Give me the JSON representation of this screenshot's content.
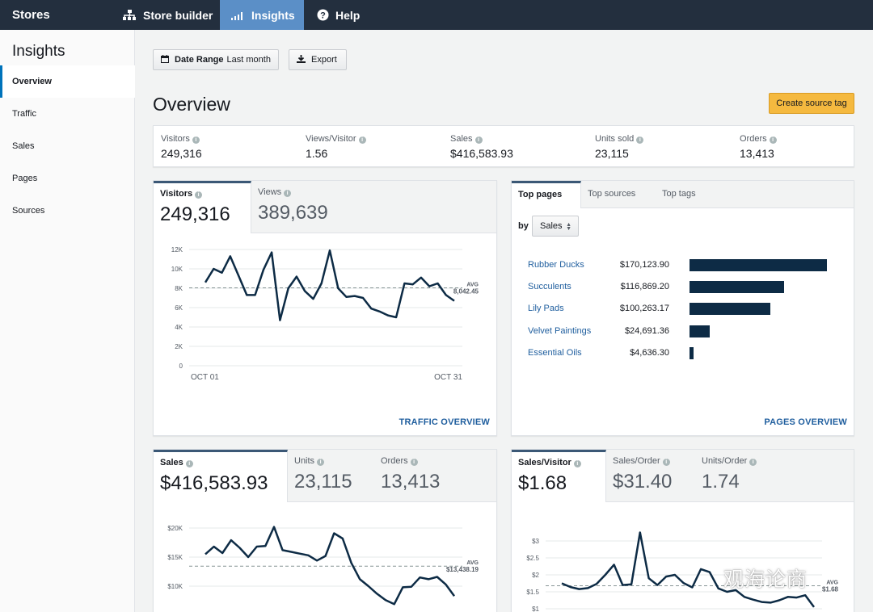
{
  "topbar": {
    "brand": "Stores",
    "nav": [
      {
        "label": "Store builder",
        "icon": "sitemap-icon"
      },
      {
        "label": "Insights",
        "icon": "bar-chart-icon",
        "active": true
      },
      {
        "label": "Help",
        "icon": "help-icon"
      }
    ]
  },
  "sidebar": {
    "title": "Insights",
    "items": [
      {
        "label": "Overview",
        "active": true
      },
      {
        "label": "Traffic"
      },
      {
        "label": "Sales"
      },
      {
        "label": "Pages"
      },
      {
        "label": "Sources"
      }
    ]
  },
  "toolbar": {
    "date_range_label": "Date Range",
    "date_range_value": "Last month",
    "export_label": "Export"
  },
  "page": {
    "title": "Overview",
    "create_button": "Create source tag"
  },
  "summary": [
    {
      "label": "Visitors",
      "value": "249,316"
    },
    {
      "label": "Views/Visitor",
      "value": "1.56"
    },
    {
      "label": "Sales",
      "value": "$416,583.93"
    },
    {
      "label": "Units sold",
      "value": "23,115"
    },
    {
      "label": "Orders",
      "value": "13,413"
    }
  ],
  "traffic": {
    "tabs": [
      {
        "label": "Visitors",
        "value": "249,316",
        "active": true
      },
      {
        "label": "Views",
        "value": "389,639"
      }
    ],
    "link": "TRAFFIC OVERVIEW"
  },
  "pages_card": {
    "tabs": [
      "Top pages",
      "Top sources",
      "Top tags"
    ],
    "by_label": "by",
    "select_value": "Sales",
    "rows": [
      {
        "name": "Rubber Ducks",
        "amount": "$170,123.90",
        "value": 170123.9
      },
      {
        "name": "Succulents",
        "amount": "$116,869.20",
        "value": 116869.2
      },
      {
        "name": "Lily Pads",
        "amount": "$100,263.17",
        "value": 100263.17
      },
      {
        "name": "Velvet Paintings",
        "amount": "$24,691.36",
        "value": 24691.36
      },
      {
        "name": "Essential Oils",
        "amount": "$4,636.30",
        "value": 4636.3
      }
    ],
    "link": "PAGES OVERVIEW"
  },
  "sales_card": {
    "tabs": [
      {
        "label": "Sales",
        "value": "$416,583.93",
        "active": true
      },
      {
        "label": "Units",
        "value": "23,115"
      },
      {
        "label": "Orders",
        "value": "13,413"
      }
    ]
  },
  "ratio_card": {
    "tabs": [
      {
        "label": "Sales/Visitor",
        "value": "$1.68",
        "active": true
      },
      {
        "label": "Sales/Order",
        "value": "$31.40"
      },
      {
        "label": "Units/Order",
        "value": "1.74"
      }
    ]
  },
  "watermark": "观海论商",
  "colors": {
    "accent": "#0073bb",
    "line": "#0d2b45",
    "topbar": "#232f3e",
    "button": "#f5b93f"
  },
  "chart_data": [
    {
      "type": "line",
      "name": "visitors",
      "yticks": [
        "12K",
        "10K",
        "8K",
        "6K",
        "4K",
        "2K",
        "0"
      ],
      "ylim": [
        0,
        12000
      ],
      "xticks": [
        "OCT 01",
        "OCT 31"
      ],
      "avg_label": "AVG",
      "avg_value_label": "8,042.45",
      "avg": 8042.45,
      "values": [
        8600,
        10000,
        9600,
        11300,
        9300,
        7300,
        7300,
        9900,
        11700,
        4700,
        8000,
        9200,
        7700,
        6900,
        8500,
        11900,
        8000,
        7100,
        7200,
        7000,
        5900,
        5600,
        5200,
        5000,
        8500,
        8400,
        9100,
        8200,
        8500,
        7300,
        6700
      ]
    },
    {
      "type": "line",
      "name": "sales",
      "yticks": [
        "$20K",
        "$15K",
        "$10K"
      ],
      "ylim": [
        9000,
        21000
      ],
      "avg_label": "AVG",
      "avg_value_label": "$13,438.19",
      "avg": 13438.19,
      "values": [
        15500,
        16800,
        15700,
        17900,
        16600,
        15000,
        16800,
        16900,
        20200,
        16200,
        15900,
        15600,
        15300,
        14400,
        15200,
        19100,
        18200,
        14000,
        11200,
        10000,
        8700,
        7600,
        6900,
        9800,
        9900,
        11500,
        11200,
        11600,
        10300,
        8300
      ]
    },
    {
      "type": "line",
      "name": "sales-per-visitor",
      "yticks": [
        "$3",
        "$2.5",
        "$2",
        "$1.5",
        "$1"
      ],
      "ylim": [
        1,
        3.4
      ],
      "avg_label": "AVG",
      "avg_value_label": "$1.68",
      "avg": 1.68,
      "values": [
        1.75,
        1.64,
        1.58,
        1.61,
        1.73,
        2.0,
        2.3,
        1.7,
        1.72,
        3.25,
        1.9,
        1.7,
        1.95,
        2.0,
        1.76,
        1.63,
        2.17,
        2.08,
        1.6,
        1.5,
        1.55,
        1.35,
        1.27,
        1.2,
        1.18,
        1.25,
        1.35,
        1.33,
        1.4,
        1.05
      ]
    }
  ]
}
